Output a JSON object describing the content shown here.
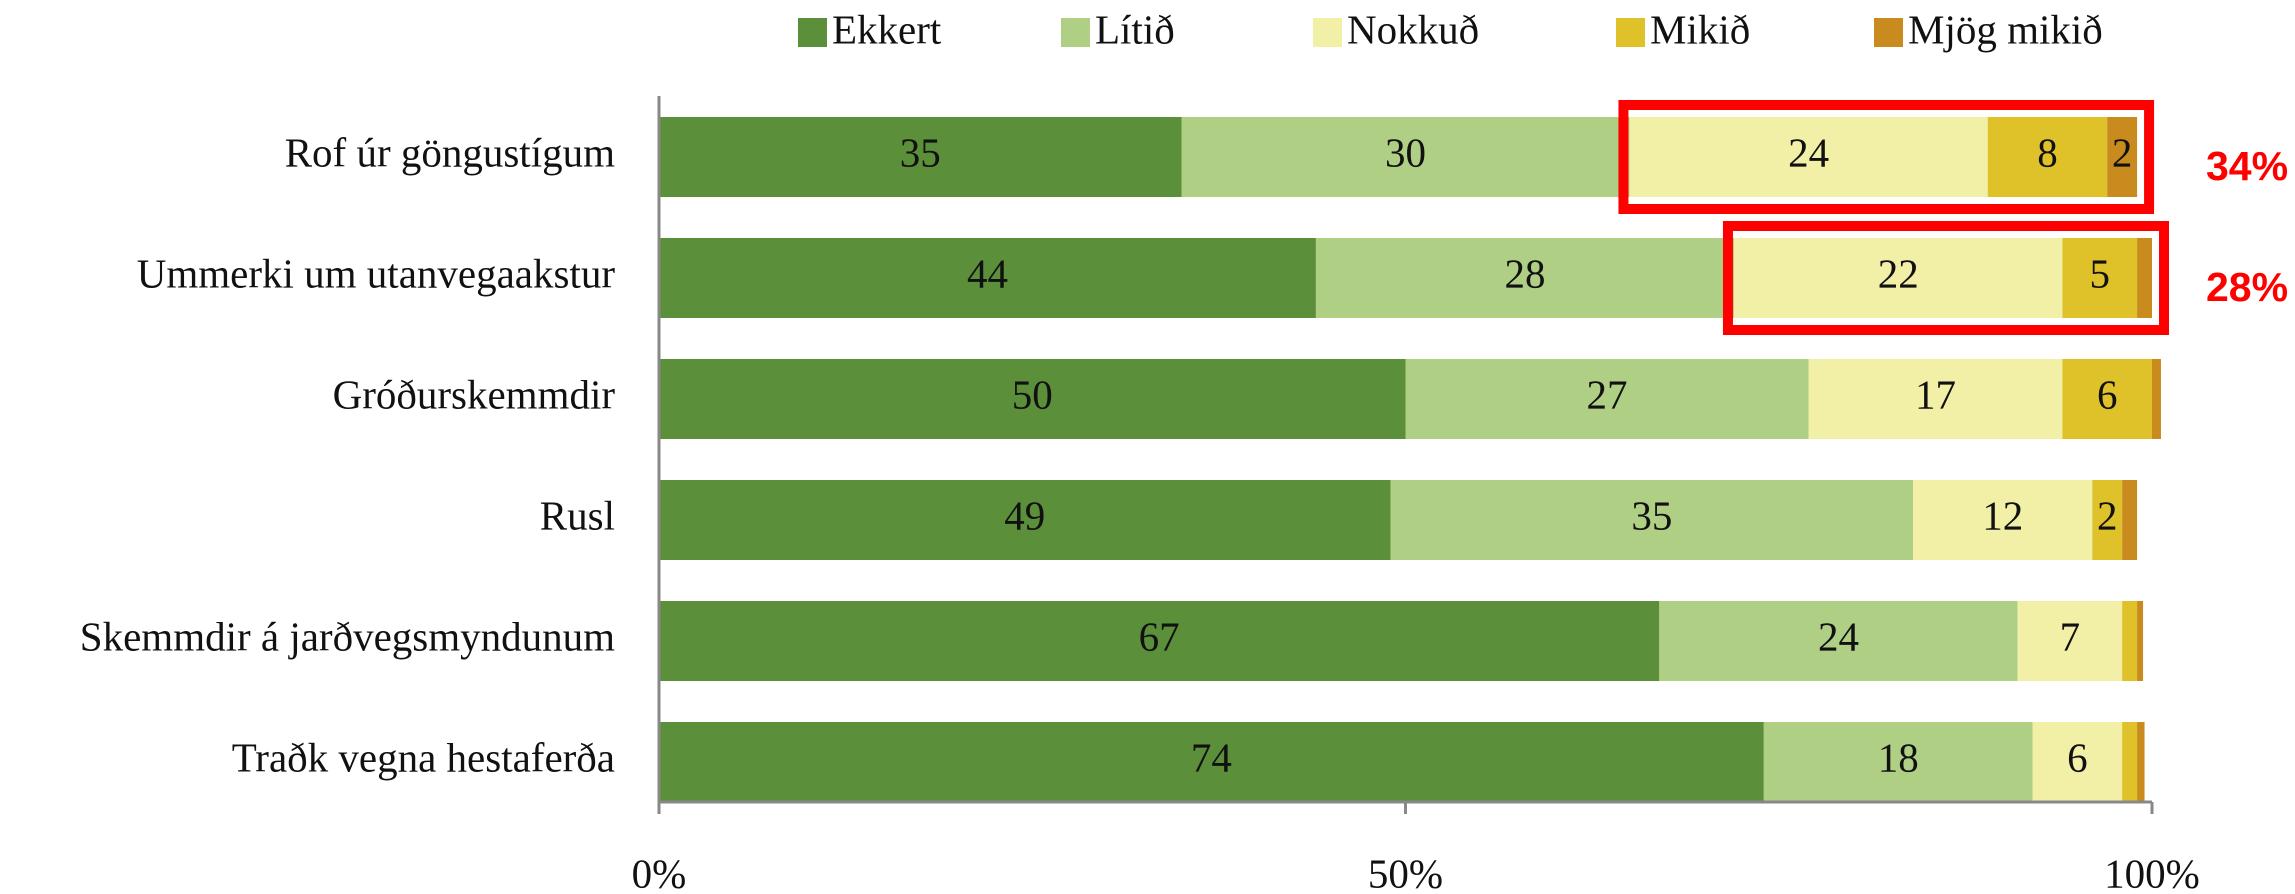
{
  "chart_data": {
    "type": "stacked_barh",
    "categories": [
      "Rof úr göngustígum",
      "Ummerki um utanvegaakstur",
      "Gróðurskemmdir",
      "Rusl",
      "Skemmdir á jarðvegsmyndunum",
      "Traðk vegna hestaferða"
    ],
    "series": [
      {
        "name": "Ekkert",
        "color": "#5b8f3a",
        "values": [
          35,
          44,
          50,
          49,
          67,
          74
        ]
      },
      {
        "name": "Lítið",
        "color": "#aecf84",
        "values": [
          30,
          28,
          27,
          35,
          24,
          18
        ]
      },
      {
        "name": "Nokkuð",
        "color": "#f2efa6",
        "values": [
          24,
          22,
          17,
          12,
          7,
          6
        ]
      },
      {
        "name": "Mikið",
        "color": "#dfc12a",
        "values": [
          8,
          5,
          6,
          2,
          1,
          1
        ]
      },
      {
        "name": "Mjög mikið",
        "color": "#c98a1e",
        "values": [
          2,
          1,
          0.6,
          1,
          0.4,
          0.5
        ]
      }
    ],
    "xlim": [
      0,
      100
    ],
    "xticks": [
      {
        "value": 0,
        "label": "0%"
      },
      {
        "value": 50,
        "label": "50%"
      },
      {
        "value": 100,
        "label": "100%"
      }
    ],
    "annotations": [
      {
        "text": "34%",
        "category": "Rof úr göngustígum",
        "from_series": "Nokkuð"
      },
      {
        "text": "28%",
        "category": "Ummerki um utanvegaakstur",
        "from_series": "Nokkuð"
      }
    ],
    "legend": "top"
  }
}
